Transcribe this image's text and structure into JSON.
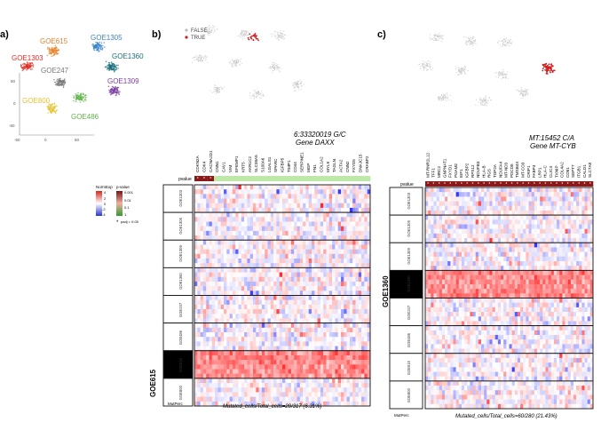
{
  "panels": {
    "a": {
      "label": "a)",
      "clusters": [
        {
          "name": "GOE615",
          "color": "#e8812a"
        },
        {
          "name": "GOE1305",
          "color": "#3a84c9"
        },
        {
          "name": "GOE1303",
          "color": "#e0302a"
        },
        {
          "name": "GOE1360",
          "color": "#1b6f7c"
        },
        {
          "name": "GOE247",
          "color": "#7a7a7a"
        },
        {
          "name": "GOE1309",
          "color": "#7b3fa0"
        },
        {
          "name": "GOE800",
          "color": "#e6c43a"
        },
        {
          "name": "GOE486",
          "color": "#5fb54a"
        }
      ],
      "axis": {
        "x_ticks": [
          "-50",
          "0",
          "50"
        ],
        "y_ticks": [
          "50",
          "0",
          "-50"
        ]
      }
    },
    "b": {
      "label": "b)",
      "legend": [
        "FALSE",
        "TRUE"
      ],
      "mutation": "6:33320019 G/C",
      "gene": "Gene DAXX",
      "pvalue_label": "pvalue",
      "genes": [
        "CDKN2A",
        "CDK4",
        "CACNA2D1",
        "CNN1",
        "CAV1",
        "VIM",
        "EFEMP1",
        "KRT5",
        "AKR1C2",
        "SLC38A5",
        "S100A6",
        "LGALS1",
        "SPARC",
        "IGFBP5",
        "TIMP1",
        "CD44",
        "SERPINE1",
        "MGP",
        "FN1",
        "COL1A2",
        "MYL9",
        "TAGLN",
        "ACTA2",
        "CNN2",
        "FXYD5",
        "DNAJC15",
        "CRABP2"
      ],
      "rows": [
        "GOE1303",
        "GOE1305",
        "GOE1309",
        "GOE1360",
        "GOE247",
        "GOE486",
        "GOE615",
        "GOE800"
      ],
      "highlight": "GOE615",
      "footer": "Mutated_cells/Total_cells=20/317 (6.31%)",
      "mutperc_label": "MutPerc"
    },
    "c": {
      "label": "c)",
      "mutation": "MT:15452 C/A",
      "gene": "Gene MT-CYB",
      "pvalue_label": "pvalue",
      "genes": [
        "MT-RNR2L12",
        "TFF1",
        "MRC2",
        "GNPNAT1",
        "FXYD1",
        "PGAM2",
        "EIF1",
        "IGFBP2",
        "RPS12",
        "NDUFB3",
        "HLA-B",
        "RGS",
        "TOP2A",
        "NDUFA4",
        "MT-ND3",
        "PDCD5",
        "TMSB4X",
        "MT-CO3",
        "CRIP1",
        "FABP4",
        "LRP1",
        "HLA-C",
        "CLIC4",
        "TXNIP",
        "COL4A2",
        "CD81",
        "SEPT7",
        "ITGB1",
        "CALD1",
        "SLC7A8"
      ],
      "rows": [
        "GOE1303",
        "GOE1305",
        "GOE1309",
        "GOE1360",
        "GOE247",
        "GOE486",
        "GOE615",
        "GOE800"
      ],
      "highlight": "GOE1360",
      "footer": "Mutated_cells/Total_cells=60/280 (21.43%)",
      "mutperc_label": "MutPerc"
    },
    "legend": {
      "norm_title": "NormExp",
      "norm_ticks": [
        "4",
        "2",
        "0",
        "-2",
        "-4"
      ],
      "p_title": "p-value",
      "p_ticks": [
        "0.001",
        "0.01",
        "0.1",
        "1"
      ],
      "padj_note": "padj < 0.05"
    }
  }
}
